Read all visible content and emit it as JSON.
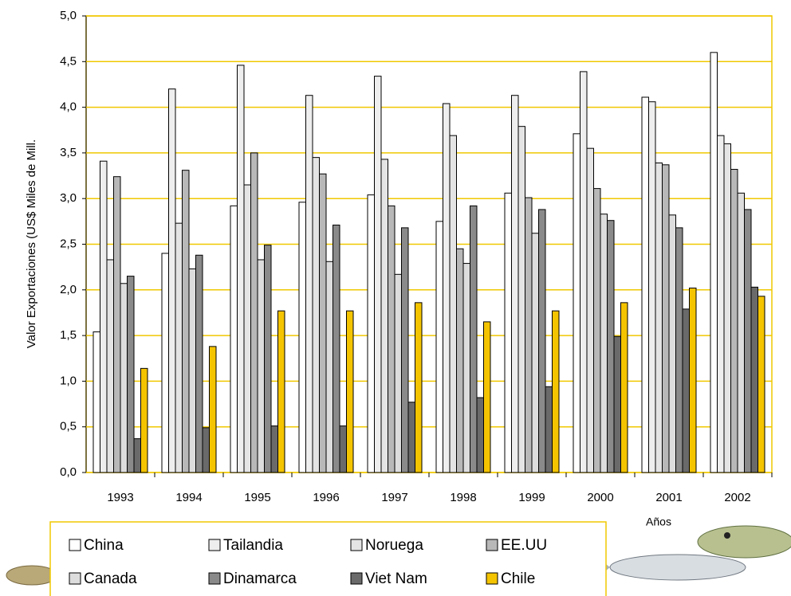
{
  "chart_data": {
    "type": "bar",
    "y_axis_label": "Valor Exportaciones (US$ Miles de Mill.",
    "x_axis_label": "Años",
    "categories": [
      "1993",
      "1994",
      "1995",
      "1996",
      "1997",
      "1998",
      "1999",
      "2000",
      "2001",
      "2002"
    ],
    "series": [
      {
        "name": "China",
        "color": "#ffffff",
        "values": [
          1.54,
          2.4,
          2.92,
          2.96,
          3.04,
          2.75,
          3.06,
          3.71,
          4.11,
          4.6
        ]
      },
      {
        "name": "Tailandia",
        "color": "#eeeeee",
        "values": [
          3.41,
          4.2,
          4.46,
          4.13,
          4.34,
          4.04,
          4.13,
          4.39,
          4.06,
          3.69
        ]
      },
      {
        "name": "Noruega",
        "color": "#e4e4e4",
        "values": [
          2.33,
          2.73,
          3.15,
          3.45,
          3.43,
          3.69,
          3.79,
          3.55,
          3.39,
          3.6
        ]
      },
      {
        "name": "EE.UU",
        "color": "#b8b8b8",
        "values": [
          3.24,
          3.31,
          3.5,
          3.27,
          2.92,
          2.45,
          3.01,
          3.11,
          3.37,
          3.32
        ]
      },
      {
        "name": "Canada",
        "color": "#dddddd",
        "values": [
          2.07,
          2.23,
          2.33,
          2.31,
          2.17,
          2.29,
          2.62,
          2.83,
          2.82,
          3.06
        ]
      },
      {
        "name": "Dinamarca",
        "color": "#8a8a8a",
        "values": [
          2.15,
          2.38,
          2.49,
          2.71,
          2.68,
          2.92,
          2.88,
          2.76,
          2.68,
          2.88
        ]
      },
      {
        "name": "Viet Nam",
        "color": "#6a6a6a",
        "values": [
          0.37,
          0.49,
          0.51,
          0.51,
          0.77,
          0.82,
          0.94,
          1.49,
          1.79,
          2.03
        ]
      },
      {
        "name": "Chile",
        "color": "#f5c400",
        "values": [
          1.14,
          1.38,
          1.77,
          1.77,
          1.86,
          1.65,
          1.77,
          1.86,
          2.02,
          1.93
        ]
      }
    ],
    "ylim": [
      0,
      5
    ],
    "yticks": [
      {
        "value": 0,
        "label": "0,0"
      },
      {
        "value": 0.5,
        "label": "0,5"
      },
      {
        "value": 1,
        "label": "1,0"
      },
      {
        "value": 1.5,
        "label": "1,5"
      },
      {
        "value": 2,
        "label": "2,0"
      },
      {
        "value": 2.5,
        "label": "2,5"
      },
      {
        "value": 3,
        "label": "3,0"
      },
      {
        "value": 3.5,
        "label": "3,5"
      },
      {
        "value": 4,
        "label": "4,0"
      },
      {
        "value": 4.5,
        "label": "4,5"
      },
      {
        "value": 5,
        "label": "5,0"
      }
    ],
    "grid": true,
    "grid_color": "#f0c800"
  }
}
